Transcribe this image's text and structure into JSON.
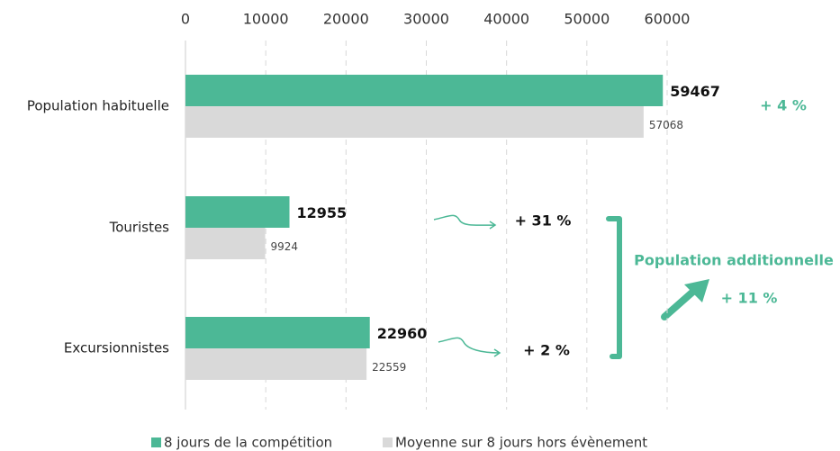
{
  "chart_data": {
    "type": "barh",
    "categories": [
      "Population habituelle",
      "Touristes",
      "Excursionnistes"
    ],
    "series": [
      {
        "name": "8 jours de la compétition",
        "color": "#4cb896",
        "values": [
          59467,
          12955,
          22960
        ]
      },
      {
        "name": "Moyenne sur 8 jours hors évènement",
        "color": "#d9d9d9",
        "values": [
          57068,
          9924,
          22559
        ]
      }
    ],
    "xlim": [
      0,
      60000
    ],
    "xticks": [
      0,
      10000,
      20000,
      30000,
      40000,
      50000,
      60000
    ],
    "grid": true,
    "annotations": [
      {
        "text": "+ 4 %",
        "color": "#4cb896"
      },
      {
        "text": "+ 31 %",
        "color": "#111111"
      },
      {
        "text": "+ 2 %",
        "color": "#111111"
      },
      {
        "text": "Population additionnelle",
        "color": "#4cb896"
      },
      {
        "text": "+ 11 %",
        "color": "#4cb896"
      }
    ]
  }
}
